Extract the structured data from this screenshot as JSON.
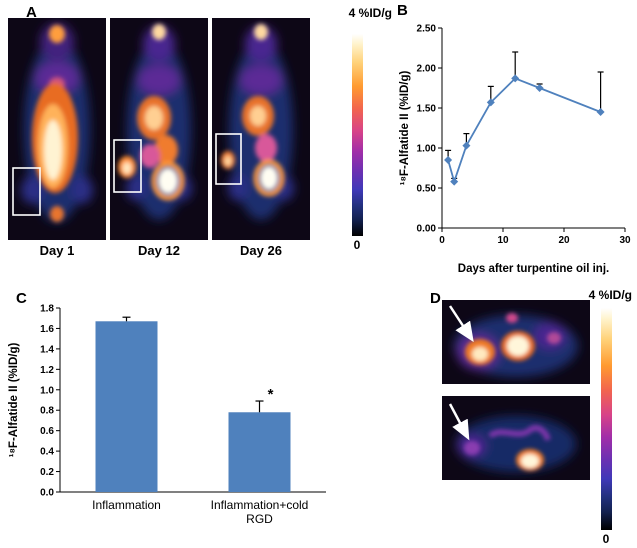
{
  "colors": {
    "series_blue": "#4F81BD",
    "axis_black": "#000000"
  },
  "panelA": {
    "label": "A",
    "scale_max_label": "4 %ID/g",
    "scale_min_label": "0",
    "captions": [
      "Day 1",
      "Day 12",
      "Day 26"
    ]
  },
  "panelB": {
    "label": "B"
  },
  "panelC": {
    "label": "C"
  },
  "panelD": {
    "label": "D",
    "scale_max_label": "4 %ID/g",
    "scale_min_label": "0"
  },
  "chart_data": [
    {
      "id": "line-chart-b",
      "type": "line",
      "x": [
        1,
        2,
        4,
        8,
        12,
        16,
        26
      ],
      "values": [
        0.85,
        0.58,
        1.03,
        1.57,
        1.87,
        1.75,
        1.45
      ],
      "errors_up": [
        0.12,
        0.04,
        0.15,
        0.2,
        0.33,
        0.05,
        0.5
      ],
      "title": "",
      "xlabel": "Days after turpentine oil inj.",
      "ylabel": "¹⁸F-Alfatide II (%ID/g)",
      "xlim": [
        0,
        30
      ],
      "ylim": [
        0,
        2.5
      ],
      "xticks": [
        "0",
        "10",
        "20",
        "30"
      ],
      "yticks": [
        "0.00",
        "0.50",
        "1.00",
        "1.50",
        "2.00",
        "2.50"
      ],
      "grid": false,
      "legend": "none",
      "marker": "diamond"
    },
    {
      "id": "bar-chart-c",
      "type": "bar",
      "categories": [
        [
          "Inflammation"
        ],
        [
          "Inflammation+cold",
          "RGD"
        ]
      ],
      "values": [
        1.67,
        0.78
      ],
      "errors_up": [
        0.04,
        0.11
      ],
      "title": "",
      "xlabel": "",
      "ylabel": "¹⁸F-Alfatide II (%ID/g)",
      "ylim": [
        0,
        1.8
      ],
      "yticks": [
        "0.0",
        "0.2",
        "0.4",
        "0.6",
        "0.8",
        "1.0",
        "1.2",
        "1.4",
        "1.6",
        "1.8"
      ],
      "grid": false,
      "legend": "none",
      "annotations": [
        {
          "index": 1,
          "text": "*"
        }
      ]
    }
  ]
}
